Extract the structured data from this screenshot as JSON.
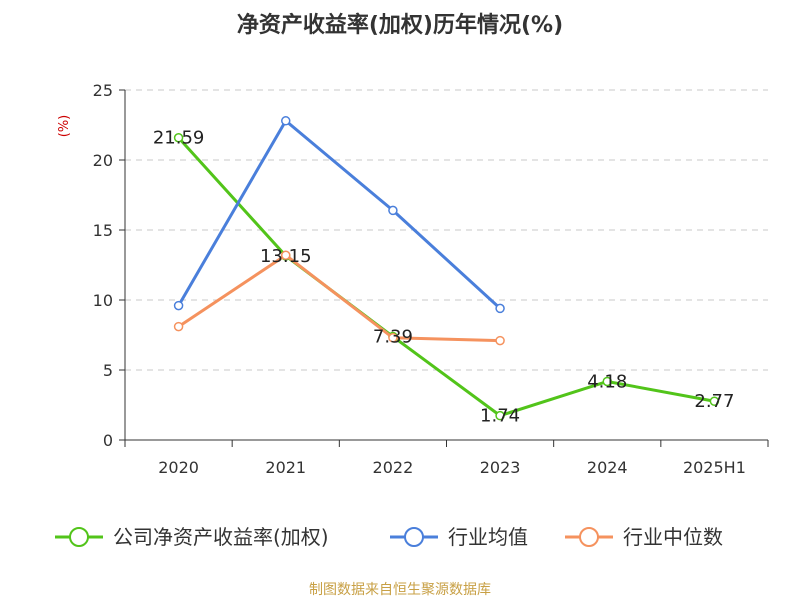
{
  "chart_data": {
    "type": "line",
    "title": "净资产收益率(加权)历年情况(%)",
    "ylabel": "(%)",
    "categories": [
      "2020",
      "2021",
      "2022",
      "2023",
      "2024",
      "2025H1"
    ],
    "ylim": [
      0,
      25
    ],
    "yticks": [
      0,
      5,
      10,
      15,
      20,
      25
    ],
    "grid": true,
    "legend_position": "bottom",
    "series": [
      {
        "name": "公司净资产收益率(加权)",
        "color": "#52c41a",
        "values": [
          21.59,
          13.15,
          7.39,
          1.74,
          4.18,
          2.77
        ],
        "labels": [
          "21.59",
          "13.15",
          "7.39",
          "1.74",
          "4.18",
          "2.77"
        ]
      },
      {
        "name": "行业均值",
        "color": "#4a7fdb",
        "values": [
          9.6,
          22.8,
          16.4,
          9.4,
          null,
          null
        ]
      },
      {
        "name": "行业中位数",
        "color": "#f5925e",
        "values": [
          8.1,
          13.2,
          7.3,
          7.1,
          null,
          null
        ]
      }
    ]
  },
  "source": "制图数据来自恒生聚源数据库"
}
